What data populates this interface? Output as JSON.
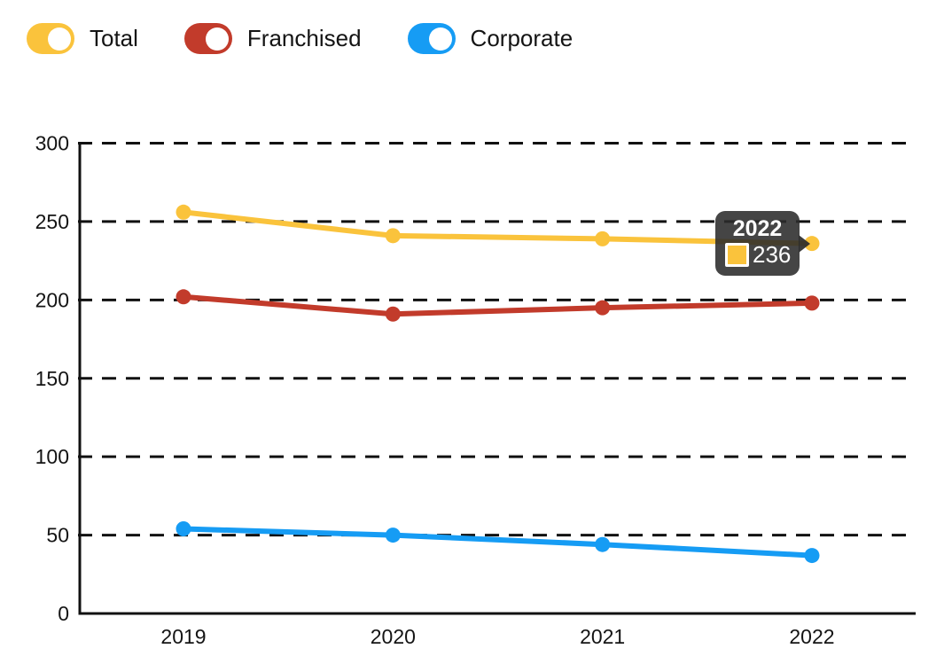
{
  "legend": {
    "items": [
      {
        "label": "Total",
        "color": "#FAC33C"
      },
      {
        "label": "Franchised",
        "color": "#C23B2B"
      },
      {
        "label": "Corporate",
        "color": "#169CF4"
      }
    ]
  },
  "tooltip": {
    "title": "2022",
    "series": "Total",
    "value": "236",
    "swatch_color": "#FAC33C"
  },
  "chart_data": {
    "type": "line",
    "title": "",
    "categories": [
      "2019",
      "2020",
      "2021",
      "2022"
    ],
    "series": [
      {
        "name": "Total",
        "color": "#FAC33C",
        "values": [
          256,
          241,
          239,
          236
        ]
      },
      {
        "name": "Franchised",
        "color": "#C23B2B",
        "values": [
          202,
          191,
          195,
          198
        ]
      },
      {
        "name": "Corporate",
        "color": "#169CF4",
        "values": [
          54,
          50,
          44,
          37
        ]
      }
    ],
    "xlabel": "",
    "ylabel": "",
    "ylim": [
      0,
      300
    ],
    "yticks": [
      0,
      50,
      100,
      150,
      200,
      250,
      300
    ],
    "grid": "horizontal-dashed",
    "legend_position": "top-left",
    "highlighted_point": {
      "series": "Total",
      "category": "2022",
      "value": 236
    }
  }
}
